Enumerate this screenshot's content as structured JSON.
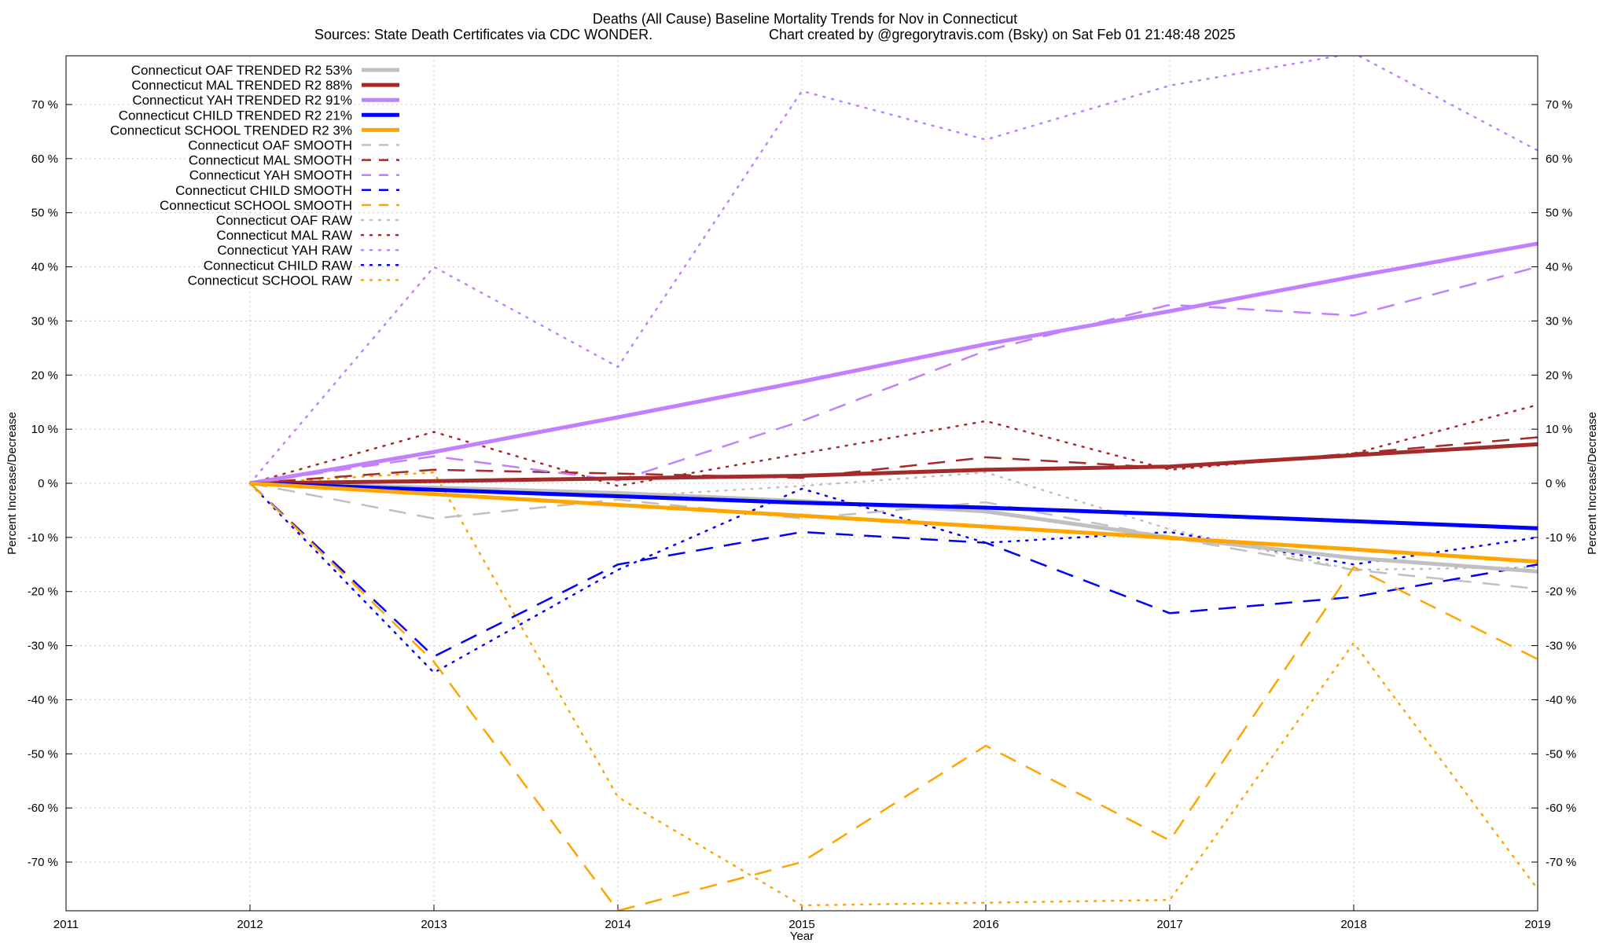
{
  "chart_data": {
    "type": "line",
    "title": "Deaths (All Cause)  Baseline Mortality Trends for Nov in Connecticut",
    "subtitle_left": "Sources: State Death Certificates via CDC WONDER.",
    "subtitle_right": "Chart created by @gregorytravis.com (Bsky) on Sat Feb 01 21:48:48 2025",
    "xlabel": "Year",
    "ylabel_left": "Percent Increase/Decrease",
    "ylabel_right": "Percent Increase/Decrease",
    "xlim": [
      2011,
      2019
    ],
    "ylim": [
      -79,
      79
    ],
    "x_ticks": [
      2011,
      2012,
      2013,
      2014,
      2015,
      2016,
      2017,
      2018,
      2019
    ],
    "y_ticks": [
      -70,
      -60,
      -50,
      -40,
      -30,
      -20,
      -10,
      0,
      10,
      20,
      30,
      40,
      50,
      60,
      70
    ],
    "y_tick_suffix": " %",
    "grid": true,
    "legend_position": "top-left",
    "x": [
      2012,
      2013,
      2014,
      2015,
      2016,
      2017,
      2018,
      2019
    ],
    "series": [
      {
        "name": "Connecticut OAF TRENDED R2  53%",
        "color": "#c0c0c0",
        "style": "solid",
        "width": 5,
        "values": [
          0,
          -0.8,
          -1.8,
          -3.3,
          -5.2,
          -10.0,
          -13.8,
          -16.3
        ]
      },
      {
        "name": "Connecticut MAL TRENDED R2  88%",
        "color": "#a52a2a",
        "style": "solid",
        "width": 5,
        "values": [
          0,
          0.4,
          0.9,
          1.4,
          2.5,
          3.1,
          5.2,
          7.2
        ]
      },
      {
        "name": "Connecticut YAH TRENDED R2  91%",
        "color": "#c080ff",
        "style": "solid",
        "width": 5,
        "values": [
          0,
          5.8,
          12.2,
          18.8,
          25.7,
          31.8,
          38.2,
          44.3
        ]
      },
      {
        "name": "Connecticut CHILD TRENDED R2  21%",
        "color": "#0000ff",
        "style": "solid",
        "width": 5,
        "values": [
          0,
          -1.2,
          -2.4,
          -3.6,
          -4.5,
          -5.7,
          -7.0,
          -8.3
        ]
      },
      {
        "name": "Connecticut SCHOOL TRENDED R2   3%",
        "color": "#ffa500",
        "style": "solid",
        "width": 5,
        "values": [
          0,
          -2.0,
          -4.0,
          -6.0,
          -8.0,
          -10.1,
          -12.2,
          -14.5
        ]
      },
      {
        "name": "Connecticut OAF SMOOTH",
        "color": "#c0c0c0",
        "style": "dash",
        "width": 2.5,
        "values": [
          0,
          -6.5,
          -3.0,
          -6.5,
          -3.5,
          -10.0,
          -16.0,
          -19.5
        ]
      },
      {
        "name": "Connecticut MAL SMOOTH",
        "color": "#a52a2a",
        "style": "dash",
        "width": 2.5,
        "values": [
          0,
          2.5,
          1.8,
          1.0,
          4.8,
          2.8,
          5.5,
          8.5
        ]
      },
      {
        "name": "Connecticut YAH SMOOTH",
        "color": "#c080ff",
        "style": "dash",
        "width": 2.5,
        "values": [
          0,
          5.0,
          0.5,
          11.5,
          24.5,
          33.0,
          31.0,
          40.0
        ]
      },
      {
        "name": "Connecticut CHILD SMOOTH",
        "color": "#0000ff",
        "style": "dash",
        "width": 2.5,
        "values": [
          0,
          -32.0,
          -15.0,
          -9.0,
          -11.0,
          -24.0,
          -21.0,
          -15.0
        ]
      },
      {
        "name": "Connecticut SCHOOL SMOOTH",
        "color": "#ffa500",
        "style": "dash",
        "width": 2.5,
        "values": [
          0,
          -33.0,
          -79.0,
          -70.0,
          -48.5,
          -66.0,
          -15.5,
          -32.5
        ]
      },
      {
        "name": "Connecticut OAF RAW",
        "color": "#c0c0c0",
        "style": "dot",
        "width": 2.5,
        "values": [
          0,
          -1.0,
          -2.5,
          -0.5,
          2.0,
          -8.5,
          -16.0,
          -15.5
        ]
      },
      {
        "name": "Connecticut MAL RAW",
        "color": "#a52a2a",
        "style": "dot",
        "width": 2.5,
        "values": [
          0,
          9.5,
          -0.5,
          5.5,
          11.5,
          2.5,
          5.5,
          14.5
        ]
      },
      {
        "name": "Connecticut YAH RAW",
        "color": "#c080ff",
        "style": "dot",
        "width": 2.5,
        "values": [
          0,
          40.0,
          21.5,
          72.5,
          63.5,
          73.5,
          79.5,
          61.5
        ]
      },
      {
        "name": "Connecticut CHILD RAW",
        "color": "#0000ff",
        "style": "dot",
        "width": 2.5,
        "values": [
          0,
          -35.0,
          -16.0,
          -1.0,
          -11.0,
          -9.0,
          -15.0,
          -10.0
        ]
      },
      {
        "name": "Connecticut SCHOOL RAW",
        "color": "#ffa500",
        "style": "dot",
        "width": 2.5,
        "values": [
          0,
          2.0,
          -58.0,
          -78.0,
          -77.5,
          -77.0,
          -29.5,
          -75.0
        ]
      }
    ]
  }
}
